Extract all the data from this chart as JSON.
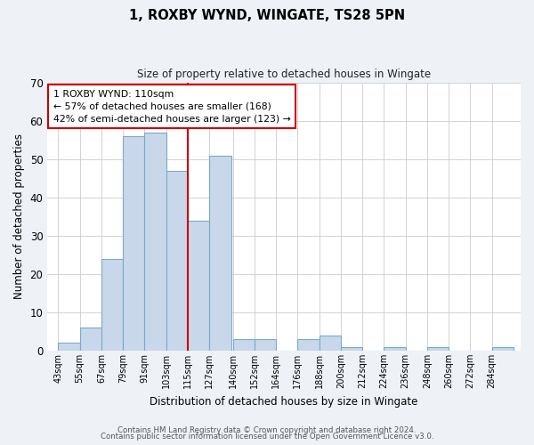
{
  "title": "1, ROXBY WYND, WINGATE, TS28 5PN",
  "subtitle": "Size of property relative to detached houses in Wingate",
  "xlabel": "Distribution of detached houses by size in Wingate",
  "ylabel": "Number of detached properties",
  "bin_labels": [
    "43sqm",
    "55sqm",
    "67sqm",
    "79sqm",
    "91sqm",
    "103sqm",
    "115sqm",
    "127sqm",
    "140sqm",
    "152sqm",
    "164sqm",
    "176sqm",
    "188sqm",
    "200sqm",
    "212sqm",
    "224sqm",
    "236sqm",
    "248sqm",
    "260sqm",
    "272sqm",
    "284sqm"
  ],
  "bar_values": [
    2,
    6,
    24,
    56,
    57,
    47,
    34,
    51,
    3,
    3,
    0,
    3,
    4,
    1,
    0,
    1,
    0,
    1,
    0,
    0,
    1
  ],
  "bar_color": "#c8d8ea",
  "bar_edge_color": "#7aaac8",
  "ylim": [
    0,
    70
  ],
  "yticks": [
    0,
    10,
    20,
    30,
    40,
    50,
    60,
    70
  ],
  "vline_color": "#cc0000",
  "annotation_title": "1 ROXBY WYND: 110sqm",
  "annotation_line1": "← 57% of detached houses are smaller (168)",
  "annotation_line2": "42% of semi-detached houses are larger (123) →",
  "annotation_box_color": "#cc0000",
  "footer_line1": "Contains HM Land Registry data © Crown copyright and database right 2024.",
  "footer_line2": "Contains public sector information licensed under the Open Government Licence v3.0.",
  "background_color": "#eef2f7",
  "plot_background_color": "#ffffff",
  "grid_color": "#cccccc"
}
